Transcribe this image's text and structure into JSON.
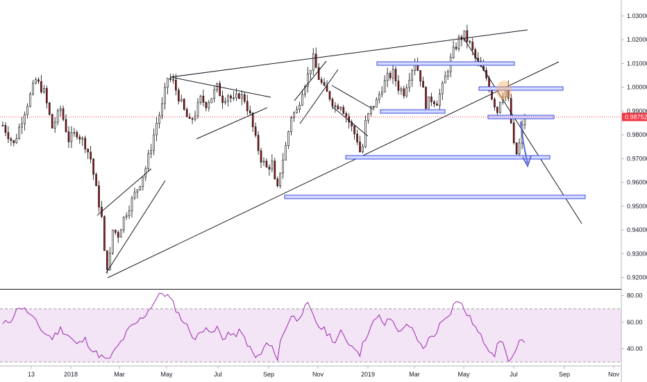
{
  "chart_data": [
    {
      "type": "candlestick",
      "title": "",
      "x_ticks": [
        "13",
        "2018",
        "Mar",
        "May",
        "Jul",
        "Sep",
        "Nov",
        "2019",
        "Mar",
        "May",
        "Jul",
        "Sep",
        "Nov"
      ],
      "y_ticks": [
        "0.92000",
        "0.93000",
        "0.94000",
        "0.95000",
        "0.96000",
        "0.97000",
        "0.98000",
        "0.99000",
        "1.00000",
        "1.01000",
        "1.02000",
        "1.03000"
      ],
      "ylim": [
        0.9155,
        1.0367
      ],
      "last_price": "0.98752",
      "colors": {
        "up": "#ffffff",
        "down": "#9b1b1f",
        "wick": "#000000",
        "last_price_line": "#f23645",
        "zone_fill": "#d6dcff",
        "zone_border": "#3847e3",
        "arrow": "#5b67d8",
        "highlight": "#f6b26b"
      },
      "price_path": [
        [
          0,
          0.984
        ],
        [
          4,
          0.976
        ],
        [
          8,
          0.99
        ],
        [
          12,
          1.003
        ],
        [
          15,
          0.998
        ],
        [
          18,
          0.983
        ],
        [
          21,
          0.991
        ],
        [
          24,
          0.978
        ],
        [
          27,
          0.981
        ],
        [
          30,
          0.976
        ],
        [
          32,
          0.97
        ],
        [
          34,
          0.957
        ],
        [
          36,
          0.945
        ],
        [
          37,
          0.93
        ],
        [
          38,
          0.925
        ],
        [
          39,
          0.929
        ],
        [
          40,
          0.94
        ],
        [
          42,
          0.938
        ],
        [
          44,
          0.945
        ],
        [
          46,
          0.95
        ],
        [
          48,
          0.955
        ],
        [
          50,
          0.96
        ],
        [
          52,
          0.966
        ],
        [
          54,
          0.975
        ],
        [
          56,
          0.985
        ],
        [
          58,
          0.992
        ],
        [
          60,
          1.004
        ],
        [
          62,
          1.002
        ],
        [
          64,
          0.996
        ],
        [
          66,
          0.99
        ],
        [
          68,
          0.985
        ],
        [
          70,
          0.989
        ],
        [
          72,
          0.995
        ],
        [
          74,
          0.993
        ],
        [
          76,
          0.996
        ],
        [
          78,
          1.0
        ],
        [
          80,
          0.995
        ],
        [
          82,
          0.997
        ],
        [
          84,
          0.994
        ],
        [
          86,
          0.997
        ],
        [
          88,
          0.995
        ],
        [
          90,
          0.988
        ],
        [
          92,
          0.978
        ],
        [
          94,
          0.97
        ],
        [
          96,
          0.966
        ],
        [
          98,
          0.968
        ],
        [
          99,
          0.96
        ],
        [
          100,
          0.957
        ],
        [
          101,
          0.965
        ],
        [
          103,
          0.975
        ],
        [
          105,
          0.988
        ],
        [
          107,
          0.99
        ],
        [
          109,
          0.999
        ],
        [
          111,
          1.005
        ],
        [
          113,
          1.012
        ],
        [
          115,
          1.004
        ],
        [
          117,
          0.999
        ],
        [
          119,
          0.996
        ],
        [
          121,
          0.992
        ],
        [
          123,
          0.993
        ],
        [
          125,
          0.988
        ],
        [
          127,
          0.983
        ],
        [
          129,
          0.978
        ],
        [
          130,
          0.973
        ],
        [
          131,
          0.975
        ],
        [
          132,
          0.985
        ],
        [
          134,
          0.991
        ],
        [
          136,
          0.994
        ],
        [
          138,
          1.0
        ],
        [
          140,
          1.004
        ],
        [
          142,
          1.006
        ],
        [
          144,
          1.0
        ],
        [
          146,
          0.998
        ],
        [
          148,
          1.005
        ],
        [
          150,
          1.011
        ],
        [
          152,
          1.004
        ],
        [
          154,
          0.993
        ],
        [
          156,
          0.995
        ],
        [
          158,
          0.994
        ],
        [
          160,
          1.0
        ],
        [
          162,
          1.008
        ],
        [
          164,
          1.015
        ],
        [
          166,
          1.02
        ],
        [
          168,
          1.022
        ],
        [
          170,
          1.018
        ],
        [
          172,
          1.012
        ],
        [
          174,
          1.008
        ],
        [
          176,
          1.004
        ],
        [
          178,
          0.996
        ],
        [
          180,
          0.99
        ],
        [
          181,
          0.995
        ],
        [
          183,
          1.0
        ],
        [
          184,
          0.994
        ],
        [
          185,
          0.985
        ],
        [
          186,
          0.975
        ],
        [
          187,
          0.972
        ],
        [
          188,
          0.976
        ],
        [
          189,
          0.983
        ],
        [
          190,
          0.9875
        ]
      ]
    },
    {
      "type": "line",
      "title": "",
      "y_ticks": [
        "40.00",
        "60.00",
        "80.00"
      ],
      "ylim": [
        28,
        84
      ],
      "upper_band": 70,
      "lower_band": 30,
      "colors": {
        "line": "#9c27b0",
        "band_fill": "#f3e5f5",
        "band_border": "#9e9e9e"
      },
      "values": [
        [
          0,
          58
        ],
        [
          3,
          62
        ],
        [
          6,
          72
        ],
        [
          9,
          68
        ],
        [
          12,
          60
        ],
        [
          15,
          52
        ],
        [
          18,
          48
        ],
        [
          21,
          55
        ],
        [
          24,
          50
        ],
        [
          27,
          43
        ],
        [
          30,
          47
        ],
        [
          33,
          38
        ],
        [
          36,
          34
        ],
        [
          38,
          31
        ],
        [
          40,
          36
        ],
        [
          42,
          42
        ],
        [
          44,
          48
        ],
        [
          46,
          55
        ],
        [
          48,
          58
        ],
        [
          50,
          62
        ],
        [
          52,
          66
        ],
        [
          54,
          72
        ],
        [
          56,
          78
        ],
        [
          58,
          82
        ],
        [
          60,
          80
        ],
        [
          62,
          74
        ],
        [
          64,
          66
        ],
        [
          66,
          60
        ],
        [
          68,
          54
        ],
        [
          70,
          47
        ],
        [
          72,
          52
        ],
        [
          74,
          58
        ],
        [
          76,
          50
        ],
        [
          78,
          56
        ],
        [
          80,
          47
        ],
        [
          82,
          52
        ],
        [
          84,
          49
        ],
        [
          86,
          53
        ],
        [
          88,
          48
        ],
        [
          90,
          40
        ],
        [
          92,
          33
        ],
        [
          94,
          36
        ],
        [
          96,
          44
        ],
        [
          98,
          40
        ],
        [
          99,
          38
        ],
        [
          100,
          32
        ],
        [
          101,
          45
        ],
        [
          103,
          56
        ],
        [
          105,
          65
        ],
        [
          107,
          62
        ],
        [
          109,
          68
        ],
        [
          111,
          73
        ],
        [
          113,
          64
        ],
        [
          115,
          57
        ],
        [
          117,
          54
        ],
        [
          119,
          50
        ],
        [
          121,
          45
        ],
        [
          123,
          52
        ],
        [
          125,
          47
        ],
        [
          127,
          42
        ],
        [
          129,
          40
        ],
        [
          130,
          36
        ],
        [
          131,
          43
        ],
        [
          133,
          53
        ],
        [
          135,
          60
        ],
        [
          137,
          64
        ],
        [
          139,
          58
        ],
        [
          141,
          63
        ],
        [
          143,
          57
        ],
        [
          145,
          52
        ],
        [
          147,
          60
        ],
        [
          149,
          54
        ],
        [
          151,
          45
        ],
        [
          153,
          40
        ],
        [
          155,
          47
        ],
        [
          157,
          50
        ],
        [
          159,
          58
        ],
        [
          161,
          64
        ],
        [
          163,
          68
        ],
        [
          165,
          77
        ],
        [
          167,
          73
        ],
        [
          169,
          66
        ],
        [
          171,
          60
        ],
        [
          173,
          52
        ],
        [
          175,
          46
        ],
        [
          177,
          40
        ],
        [
          179,
          36
        ],
        [
          181,
          47
        ],
        [
          183,
          40
        ],
        [
          184,
          30
        ],
        [
          186,
          34
        ],
        [
          188,
          44
        ],
        [
          190,
          47
        ]
      ]
    }
  ]
}
